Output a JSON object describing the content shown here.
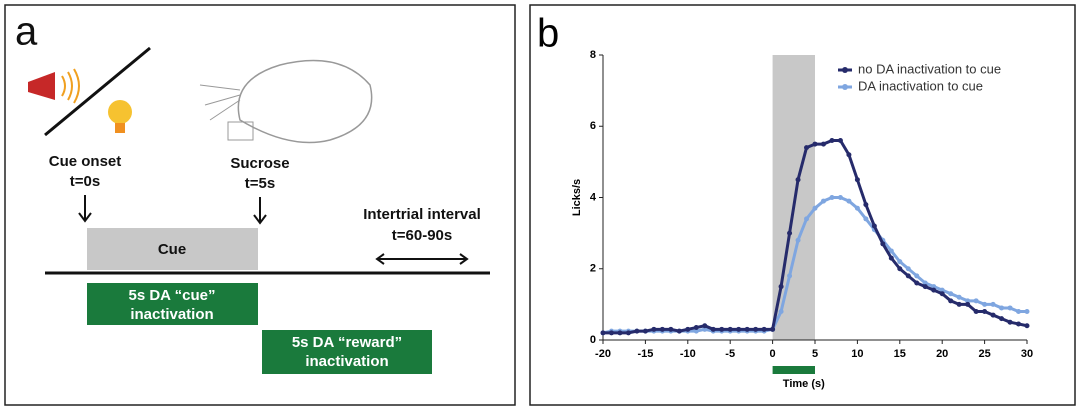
{
  "panel_a": {
    "label": "a",
    "cue_onset": {
      "title": "Cue onset",
      "time": "t=0s"
    },
    "sucrose": {
      "title": "Sucrose",
      "time": "t=5s"
    },
    "intertrial": {
      "title": "Intertrial interval",
      "time": "t=60-90s"
    },
    "cue_box": "Cue",
    "cue_inactivation": [
      "5s DA “cue”",
      "inactivation"
    ],
    "reward_inactivation": [
      "5s DA “reward”",
      "inactivation"
    ]
  },
  "chart_data": {
    "type": "line",
    "label": "b",
    "x_label": "Time (s)",
    "y_label": "Licks/s",
    "x": [
      -20,
      -19,
      -18,
      -17,
      -16,
      -15,
      -14,
      -13,
      -12,
      -11,
      -10,
      -9,
      -8,
      -7,
      -6,
      -5,
      -4,
      -3,
      -2,
      -1,
      0,
      1,
      2,
      3,
      4,
      5,
      6,
      7,
      8,
      9,
      10,
      11,
      12,
      13,
      14,
      15,
      16,
      17,
      18,
      19,
      20,
      21,
      22,
      23,
      24,
      25,
      26,
      27,
      28,
      29,
      30
    ],
    "series": [
      {
        "name": "no DA inactivation to cue",
        "color": "#262b6b",
        "values": [
          0.2,
          0.2,
          0.2,
          0.2,
          0.25,
          0.25,
          0.3,
          0.3,
          0.3,
          0.25,
          0.3,
          0.35,
          0.4,
          0.3,
          0.3,
          0.3,
          0.3,
          0.3,
          0.3,
          0.3,
          0.3,
          1.5,
          3.0,
          4.5,
          5.4,
          5.5,
          5.5,
          5.6,
          5.6,
          5.2,
          4.5,
          3.8,
          3.2,
          2.7,
          2.3,
          2.0,
          1.8,
          1.6,
          1.5,
          1.4,
          1.3,
          1.1,
          1.0,
          1.0,
          0.8,
          0.8,
          0.7,
          0.6,
          0.5,
          0.45,
          0.4
        ]
      },
      {
        "name": "DA inactivation to cue",
        "color": "#7fa6e0",
        "values": [
          0.2,
          0.25,
          0.25,
          0.25,
          0.25,
          0.25,
          0.25,
          0.25,
          0.25,
          0.25,
          0.25,
          0.25,
          0.3,
          0.25,
          0.25,
          0.25,
          0.25,
          0.25,
          0.25,
          0.25,
          0.3,
          0.8,
          1.8,
          2.8,
          3.4,
          3.7,
          3.9,
          4.0,
          4.0,
          3.9,
          3.7,
          3.4,
          3.1,
          2.8,
          2.5,
          2.2,
          2.0,
          1.8,
          1.6,
          1.5,
          1.4,
          1.3,
          1.2,
          1.1,
          1.1,
          1.0,
          1.0,
          0.9,
          0.9,
          0.8,
          0.8
        ]
      }
    ],
    "cue_window": [
      0,
      5
    ],
    "cue_window_color": "#c8c8c8",
    "inactivation_color": "#1a7a3c",
    "xlim": [
      -20,
      30
    ],
    "xticks": [
      -20,
      -15,
      -10,
      -5,
      0,
      5,
      10,
      15,
      20,
      25,
      30
    ],
    "ylim": [
      0,
      8
    ],
    "yticks": [
      0,
      2,
      4,
      6,
      8
    ],
    "legend": "upper right"
  }
}
